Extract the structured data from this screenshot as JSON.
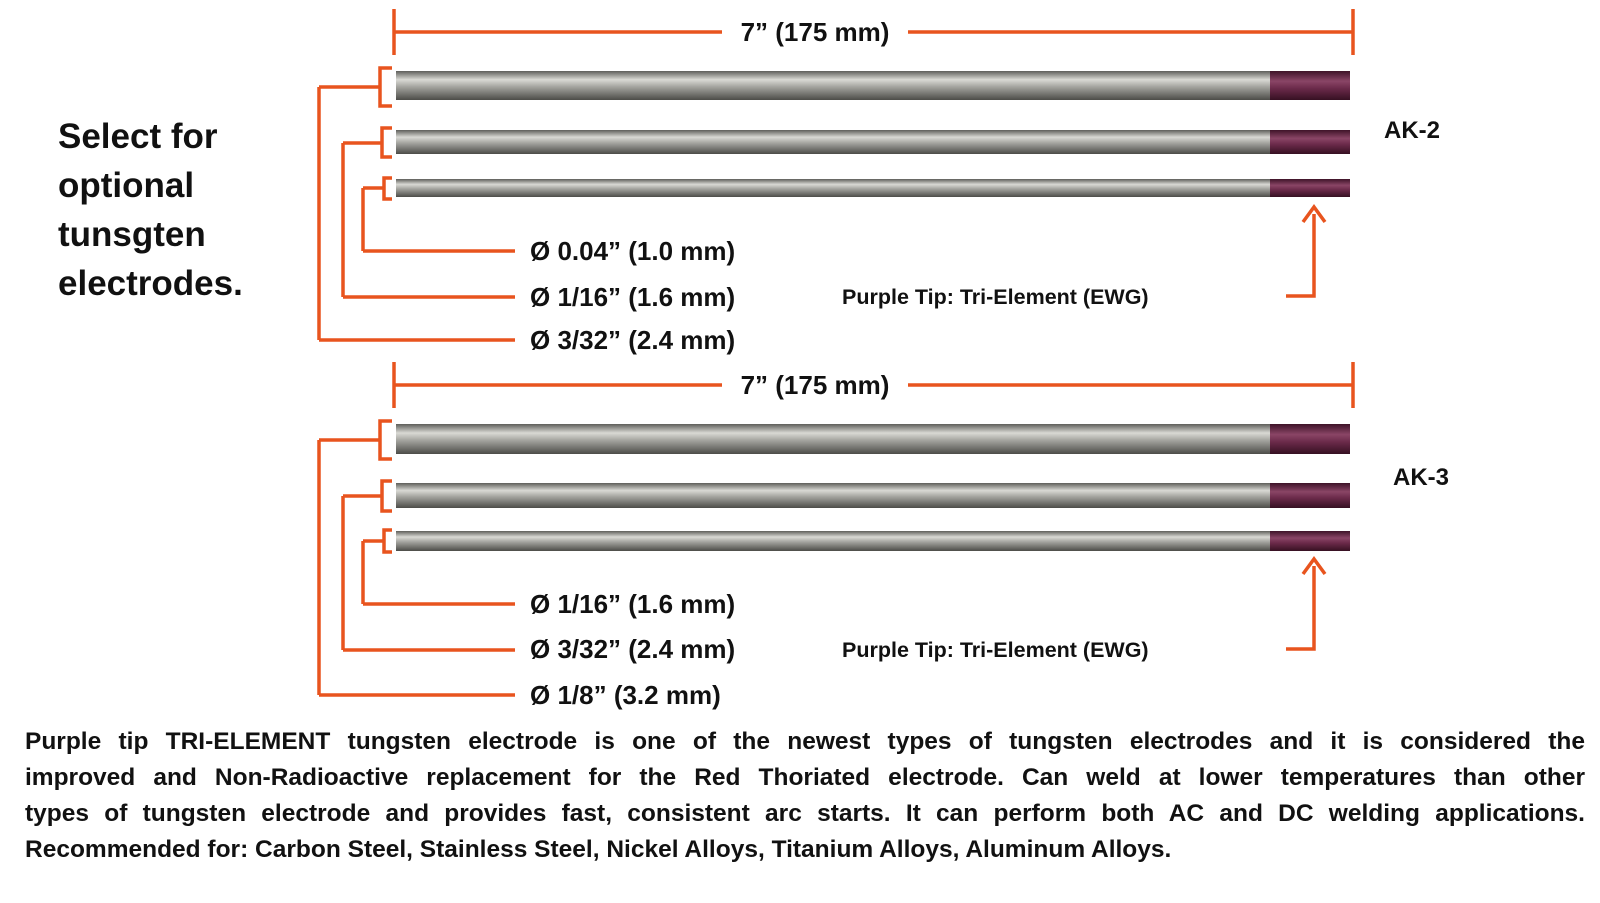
{
  "side_title": [
    "Select for",
    "optional",
    "tunsgten",
    "electrodes."
  ],
  "colors": {
    "bracket": "#e8541e",
    "rod": "#9a9a95",
    "tip": "#6b2a4a"
  },
  "kits": [
    {
      "name": "AK-2",
      "length_label": "7” (175 mm)",
      "diameters": [
        "Ø 0.04” (1.0 mm)",
        "Ø 1/16” (1.6 mm)",
        "Ø 3/32” (2.4 mm)"
      ],
      "tip_label": "Purple Tip: Tri-Element (EWG)"
    },
    {
      "name": "AK-3",
      "length_label": "7” (175 mm)",
      "diameters": [
        "Ø 1/16” (1.6 mm)",
        "Ø 3/32” (2.4 mm)",
        "Ø 1/8” (3.2 mm)"
      ],
      "tip_label": "Purple Tip: Tri-Element (EWG)"
    }
  ],
  "description": [
    "Purple tip TRI-ELEMENT tungsten electrode is one of the newest types of tungsten electrodes and it is considered the",
    "improved and Non-Radioactive replacement for the Red Thoriated electrode. Can weld at lower temperatures than other",
    "types of tungsten electrode and provides fast, consistent arc starts. It can perform both AC and DC welding applications.",
    "Recommended for: Carbon Steel, Stainless Steel, Nickel Alloys, Titanium Alloys, Aluminum Alloys."
  ]
}
